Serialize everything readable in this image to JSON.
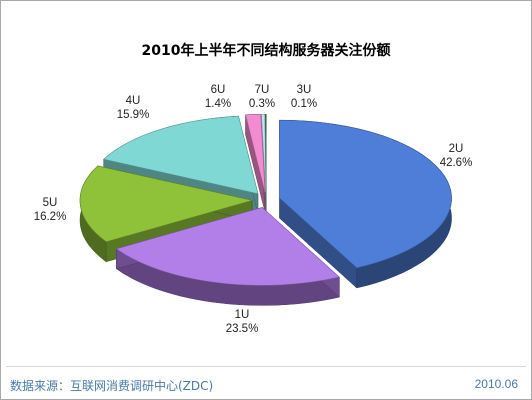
{
  "chart_data": {
    "type": "pie",
    "title": "2010年上半年不同结构服务器关注份额",
    "slices": [
      {
        "label": "2U",
        "value": 42.6,
        "value_text": "42.6%",
        "color": "#4f7ed9"
      },
      {
        "label": "1U",
        "value": 23.5,
        "value_text": "23.5%",
        "color": "#b27ee8"
      },
      {
        "label": "5U",
        "value": 16.2,
        "value_text": "16.2%",
        "color": "#8fc238"
      },
      {
        "label": "4U",
        "value": 15.9,
        "value_text": "15.9%",
        "color": "#7fd8d4"
      },
      {
        "label": "6U",
        "value": 1.4,
        "value_text": "1.4%",
        "color": "#f28bd0"
      },
      {
        "label": "7U",
        "value": 0.3,
        "value_text": "0.3%",
        "color": "#c8e0f8"
      },
      {
        "label": "3U",
        "value": 0.1,
        "value_text": "0.1%",
        "color": "#2f7f3c"
      }
    ]
  },
  "footer": {
    "source": "数据来源：互联网消费调研中心(ZDC)",
    "date": "2010.06"
  }
}
